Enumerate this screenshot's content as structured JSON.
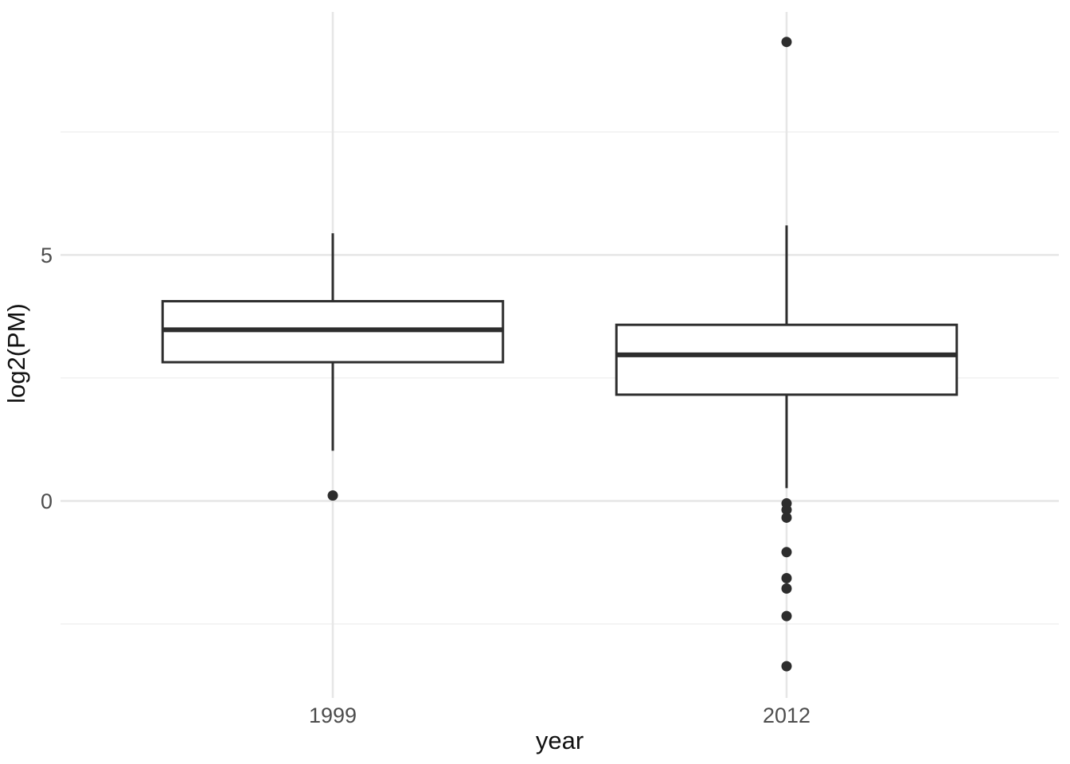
{
  "chart_data": {
    "type": "boxplot",
    "title": "",
    "xlabel": "year",
    "ylabel": "log2(PM)",
    "categories": [
      "1999",
      "2012"
    ],
    "series": [
      {
        "name": "1999",
        "whisker_low": 1.02,
        "q1": 2.82,
        "median": 3.48,
        "q3": 4.06,
        "whisker_high": 5.44,
        "outliers": [
          0.11
        ]
      },
      {
        "name": "2012",
        "whisker_low": 0.26,
        "q1": 2.16,
        "median": 2.97,
        "q3": 3.58,
        "whisker_high": 5.6,
        "outliers": [
          9.33,
          -0.05,
          -0.18,
          -0.34,
          -1.04,
          -1.57,
          -1.78,
          -2.34,
          -3.36
        ]
      }
    ],
    "ylim": [
      -3.94,
      9.94
    ],
    "yticks": [
      {
        "value": 0,
        "label": "0"
      },
      {
        "value": 5,
        "label": "5"
      }
    ],
    "y_minor_gridlines": [
      -2.5,
      2.5,
      7.5
    ],
    "grid": "horizontal major+minor, vertical line at each category",
    "legend": "none",
    "box_width_ratio": 0.75,
    "colors": {
      "box_stroke": "#2d2d2d",
      "box_fill": "#ffffff",
      "median_stroke": "#2d2d2d",
      "outlier_fill": "#2d2d2d",
      "grid_major": "#e6e6e6",
      "grid_minor": "#f0f0f0",
      "tick_label": "#4d4d4d",
      "axis_title": "#111111",
      "background": "#ffffff"
    }
  }
}
